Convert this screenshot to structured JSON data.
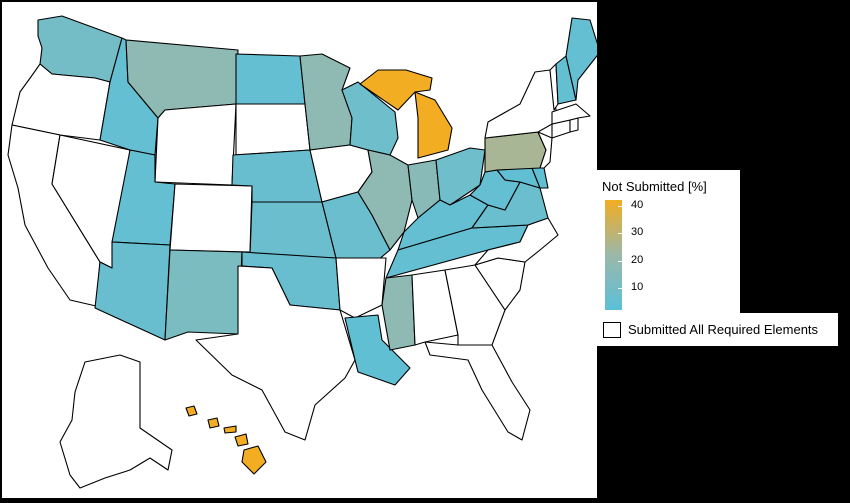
{
  "legend": {
    "title": "Not Submitted [%]",
    "ticks": [
      {
        "label": "40",
        "value": 40
      },
      {
        "label": "30",
        "value": 30
      },
      {
        "label": "20",
        "value": 20
      },
      {
        "label": "10",
        "value": 10
      }
    ],
    "range": [
      2,
      42
    ],
    "colors": {
      "low": "#5bc0d9",
      "mid": "#9bb8a9",
      "high": "#f2ad23"
    },
    "submitted_label": "Submitted All Required Elements"
  },
  "states": {
    "WA": {
      "status": "not_submitted",
      "percent": 10
    },
    "OR": {
      "status": "submitted"
    },
    "CA": {
      "status": "submitted"
    },
    "NV": {
      "status": "submitted"
    },
    "ID": {
      "status": "not_submitted",
      "percent": 5
    },
    "MT": {
      "status": "not_submitted",
      "percent": 18
    },
    "WY": {
      "status": "submitted"
    },
    "UT": {
      "status": "not_submitted",
      "percent": 5
    },
    "AZ": {
      "status": "not_submitted",
      "percent": 6
    },
    "CO": {
      "status": "submitted"
    },
    "NM": {
      "status": "not_submitted",
      "percent": 12
    },
    "ND": {
      "status": "not_submitted",
      "percent": 5
    },
    "SD": {
      "status": "submitted"
    },
    "NE": {
      "status": "not_submitted",
      "percent": 6
    },
    "KS": {
      "status": "not_submitted",
      "percent": 7
    },
    "OK": {
      "status": "not_submitted",
      "percent": 6
    },
    "TX": {
      "status": "submitted"
    },
    "MN": {
      "status": "not_submitted",
      "percent": 18
    },
    "IA": {
      "status": "submitted"
    },
    "MO": {
      "status": "not_submitted",
      "percent": 7
    },
    "AR": {
      "status": "submitted"
    },
    "LA": {
      "status": "not_submitted",
      "percent": 4
    },
    "WI": {
      "status": "not_submitted",
      "percent": 8
    },
    "IL": {
      "status": "not_submitted",
      "percent": 18
    },
    "MI": {
      "status": "not_submitted",
      "percent": 42
    },
    "IN": {
      "status": "not_submitted",
      "percent": 16
    },
    "OH": {
      "status": "not_submitted",
      "percent": 8
    },
    "KY": {
      "status": "not_submitted",
      "percent": 5
    },
    "TN": {
      "status": "not_submitted",
      "percent": 5
    },
    "MS": {
      "status": "not_submitted",
      "percent": 18
    },
    "AL": {
      "status": "submitted"
    },
    "GA": {
      "status": "submitted"
    },
    "FL": {
      "status": "submitted"
    },
    "SC": {
      "status": "submitted"
    },
    "NC": {
      "status": "submitted"
    },
    "VA": {
      "status": "not_submitted",
      "percent": 7
    },
    "WV": {
      "status": "not_submitted",
      "percent": 5
    },
    "MD": {
      "status": "not_submitted",
      "percent": 4
    },
    "DE": {
      "status": "not_submitted",
      "percent": 4
    },
    "DC": {
      "status": "not_submitted",
      "percent": 4
    },
    "PA": {
      "status": "not_submitted",
      "percent": 25
    },
    "NJ": {
      "status": "submitted"
    },
    "NY": {
      "status": "submitted"
    },
    "CT": {
      "status": "submitted"
    },
    "RI": {
      "status": "submitted"
    },
    "MA": {
      "status": "submitted"
    },
    "VT": {
      "status": "submitted"
    },
    "NH": {
      "status": "not_submitted",
      "percent": 5
    },
    "ME": {
      "status": "not_submitted",
      "percent": 5
    },
    "AK": {
      "status": "submitted"
    },
    "HI": {
      "status": "not_submitted",
      "percent": 42
    }
  }
}
